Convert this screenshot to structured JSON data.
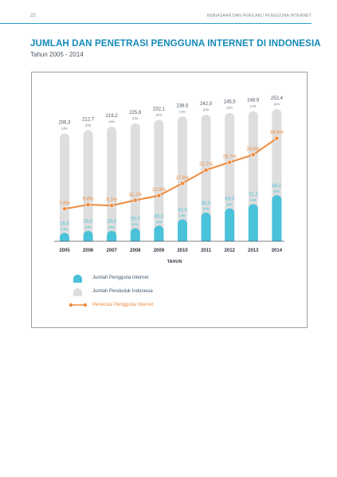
{
  "header": {
    "page_number": "22",
    "running_title": "KEBIASAAN DAN PERILAKU PENGGUNA INTERNET"
  },
  "figure": {
    "title": "JUMLAH DAN PENETRASI PENGGUNA INTERNET DI INDONESIA",
    "subtitle": "Tahun 2005 - 2014"
  },
  "colors": {
    "accent": "#148ab8",
    "users": "#4ac2d9",
    "population": "#dedede",
    "penetration": "#ef8a3c"
  },
  "chart_data": {
    "type": "bar",
    "title": "JUMLAH DAN PENETRASI PENGGUNA INTERNET DI INDONESIA",
    "subtitle": "Tahun 2005 - 2014",
    "xlabel": "TAHUN",
    "ylabel": "",
    "unit_label": "juta",
    "ylim": [
      0,
      260
    ],
    "categories": [
      "2005",
      "2006",
      "2007",
      "2008",
      "2009",
      "2010",
      "2011",
      "2012",
      "2013",
      "2014"
    ],
    "series": [
      {
        "name": "Jumlah Penduduk Indonesia",
        "type": "bar",
        "values": [
          206.3,
          212.7,
          219.2,
          225.6,
          232.1,
          238.5,
          242.0,
          245.5,
          248.9,
          252.4
        ],
        "labels": [
          "206,3",
          "212,7",
          "219,2",
          "225,6",
          "232,1",
          "238,5",
          "242,0",
          "245,5",
          "248,9",
          "252,4"
        ],
        "color": "#dedede"
      },
      {
        "name": "Jumlah Pengguna Internet",
        "type": "bar",
        "values": [
          16.0,
          20.0,
          20.0,
          25.0,
          30.0,
          42.0,
          55.0,
          63.0,
          71.2,
          88.1
        ],
        "labels": [
          "16,0",
          "20,0",
          "20,0",
          "25,0",
          "30,0",
          "42,0",
          "55,0",
          "63,0",
          "71,2",
          "88,1"
        ],
        "color": "#4ac2d9"
      },
      {
        "name": "Penetrasi Pengguna Internet",
        "type": "line",
        "values": [
          7.8,
          9.4,
          9.1,
          11.1,
          12.9,
          17.6,
          22.7,
          25.7,
          28.6,
          34.9
        ],
        "labels": [
          "7,8%",
          "9,4%",
          "9,1%",
          "11,1%",
          "12,9%",
          "17,6%",
          "22,7%",
          "25,7%",
          "28,6%",
          "34,9%"
        ],
        "color": "#ef8a3c"
      }
    ],
    "legend": [
      "Jumlah Pengguna Internet",
      "Jumlah Penduduk Indonesia",
      "Penetrasi Pengguna Internet"
    ],
    "legend_position": "bottom-left",
    "grid": false
  }
}
